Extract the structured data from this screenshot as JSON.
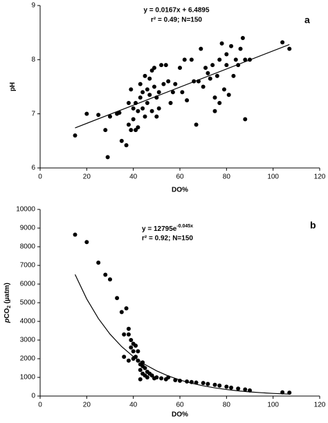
{
  "chart_data": [
    {
      "type": "scatter",
      "panel_label": "a",
      "annotations": [
        "y = 0.0167x + 6.4895",
        "r² = 0.49; N=150"
      ],
      "x_label": "DO%",
      "y_label": [
        "pH"
      ],
      "xlim": [
        0,
        120
      ],
      "xticks": [
        0,
        20,
        40,
        60,
        80,
        100,
        120
      ],
      "ylim": [
        6,
        9
      ],
      "yticks": [
        6,
        7,
        8,
        9
      ],
      "series": [
        {
          "color": "#000000",
          "x": [
            15,
            20,
            25,
            28,
            29,
            30,
            33,
            34,
            35,
            37,
            38,
            38,
            39,
            39,
            40,
            40,
            41,
            41,
            42,
            42,
            43,
            43,
            44,
            44,
            45,
            45,
            46,
            46,
            47,
            47,
            48,
            48,
            49,
            49,
            50,
            50,
            51,
            51,
            52,
            53,
            54,
            55,
            56,
            57,
            58,
            60,
            61,
            62,
            63,
            65,
            66,
            67,
            68,
            69,
            70,
            71,
            72,
            73,
            74,
            75,
            75,
            76,
            77,
            77,
            78,
            79,
            80,
            80,
            81,
            82,
            83,
            84,
            85,
            86,
            87,
            88,
            88,
            90,
            104,
            107
          ],
          "values": [
            6.6,
            7.0,
            6.98,
            6.7,
            6.2,
            6.95,
            7.0,
            7.02,
            6.5,
            6.42,
            6.8,
            7.2,
            6.7,
            7.45,
            7.1,
            6.9,
            6.7,
            7.2,
            6.75,
            7.05,
            7.3,
            7.55,
            7.1,
            7.4,
            6.95,
            7.7,
            7.2,
            7.45,
            7.65,
            7.35,
            7.05,
            7.8,
            7.5,
            7.85,
            7.3,
            6.95,
            7.1,
            7.4,
            7.9,
            7.55,
            7.9,
            7.6,
            7.2,
            7.4,
            7.55,
            7.85,
            7.4,
            8.0,
            7.25,
            8.0,
            7.6,
            6.8,
            7.6,
            8.2,
            7.5,
            7.85,
            7.75,
            7.65,
            7.9,
            7.3,
            7.05,
            7.7,
            8.0,
            7.2,
            8.3,
            7.45,
            7.9,
            8.1,
            7.35,
            8.25,
            7.7,
            8.0,
            7.9,
            8.2,
            8.4,
            6.9,
            8.0,
            8.0,
            8.32,
            8.2
          ]
        }
      ],
      "fit": {
        "x": [
          15,
          107
        ],
        "values": [
          6.74,
          8.28
        ]
      }
    },
    {
      "type": "scatter",
      "panel_label": "b",
      "annotations": [
        [
          "y = 12795e",
          "-0.045x"
        ],
        "r² = 0.92; N=150"
      ],
      "x_label": "DO%",
      "y_label": [
        "p",
        "CO",
        "2",
        " (µatm)"
      ],
      "xlim": [
        0,
        120
      ],
      "xticks": [
        0,
        20,
        40,
        60,
        80,
        100,
        120
      ],
      "ylim": [
        0,
        10000
      ],
      "yticks": [
        0,
        1000,
        2000,
        3000,
        4000,
        5000,
        6000,
        7000,
        8000,
        9000,
        10000
      ],
      "series": [
        {
          "color": "#000000",
          "x": [
            15,
            20,
            25,
            28,
            30,
            33,
            35,
            36,
            37,
            38,
            38,
            39,
            39,
            40,
            40,
            41,
            41,
            42,
            42,
            43,
            43,
            44,
            44,
            45,
            45,
            46,
            46,
            47,
            48,
            49,
            50,
            52,
            54,
            55,
            58,
            60,
            63,
            65,
            67,
            70,
            72,
            75,
            77,
            80,
            82,
            85,
            88,
            90,
            104,
            107,
            36,
            40,
            38,
            44,
            43
          ],
          "values": [
            8650,
            8250,
            7150,
            6500,
            6250,
            5250,
            4500,
            3300,
            4700,
            3600,
            3300,
            3000,
            2600,
            2800,
            2400,
            2100,
            2700,
            1900,
            2400,
            1700,
            1400,
            1600,
            1200,
            1500,
            1100,
            1300,
            1000,
            1200,
            1100,
            950,
            1000,
            950,
            900,
            1000,
            850,
            820,
            780,
            750,
            720,
            700,
            650,
            600,
            560,
            500,
            450,
            400,
            350,
            300,
            200,
            180,
            2100,
            2000,
            1900,
            1800,
            900
          ]
        }
      ],
      "fit": {
        "x": [
          15,
          20,
          25,
          30,
          35,
          40,
          45,
          50,
          55,
          60,
          65,
          70,
          75,
          80,
          85,
          90,
          95,
          100,
          107
        ],
        "values": [
          6515,
          5202,
          4154,
          3317,
          2649,
          2115,
          1689,
          1349,
          1077,
          860,
          687,
          548,
          438,
          350,
          279,
          223,
          178,
          142,
          104
        ]
      }
    }
  ]
}
